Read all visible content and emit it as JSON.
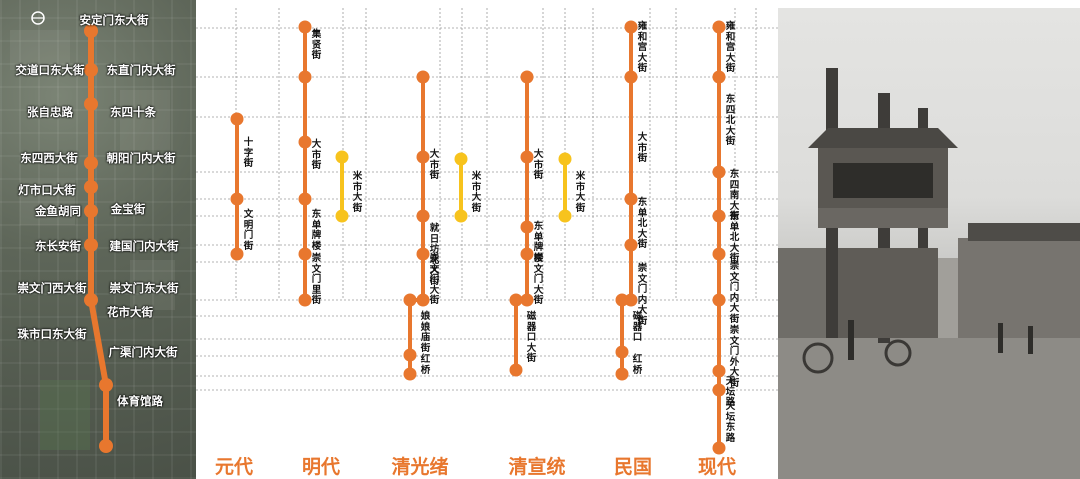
{
  "map": {
    "labels": [
      "安定门东大街",
      "交道口东大街",
      "东直门内大街",
      "张自忠路",
      "东四十条",
      "东四西大街",
      "朝阳门内大街",
      "灯市口大街",
      "金鱼胡同",
      "金宝街",
      "东长安街",
      "建国门内大街",
      "崇文门西大街",
      "崇文门东大街",
      "花市大街",
      "珠市口东大街",
      "广渠门内大街",
      "体育馆路"
    ]
  },
  "eras": [
    "元代",
    "明代",
    "清光绪",
    "清宣统",
    "民国",
    "现代"
  ],
  "columns": [
    {
      "labels": [
        "十字街",
        "文明门街"
      ]
    },
    {
      "labels": [
        "集贤街",
        "大市街",
        "东单牌楼",
        "崇文门里街"
      ],
      "branch": [
        "米市大街"
      ]
    },
    {
      "labels": [
        "大市街",
        "就日坊北大街",
        "崇文门大街",
        "娘娘庙街",
        "红桥"
      ],
      "branch": [
        "米市大街"
      ]
    },
    {
      "labels": [
        "大市街",
        "东单牌楼",
        "崇文门大街",
        "磁器口大街"
      ],
      "branch": [
        "米市大街"
      ]
    },
    {
      "labels": [
        "雍和宫大街",
        "大市街",
        "东单北大街",
        "崇文门内大街",
        "磁器口",
        "红桥"
      ]
    },
    {
      "labels": [
        "雍和宫大街",
        "东四北大街",
        "东四南大街",
        "东单北大街",
        "崇文门内大街",
        "崇文门外大街",
        "天坛路",
        "天坛东路"
      ]
    }
  ],
  "colors": {
    "orange": "#e8772e",
    "yellow": "#f7c31d",
    "grid": "#9a9a9a"
  },
  "icons": [
    "compass-icon"
  ]
}
